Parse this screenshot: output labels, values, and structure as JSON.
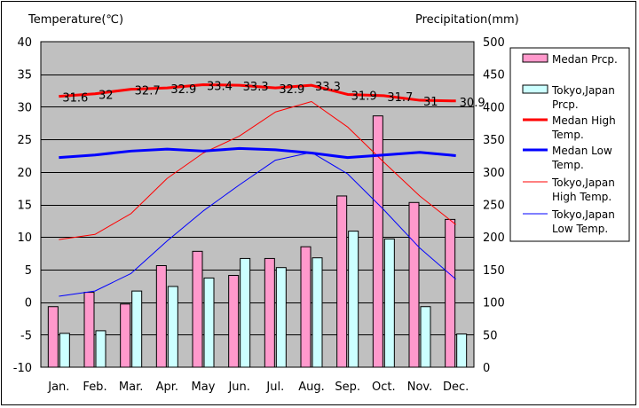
{
  "chart_data": {
    "type": "bar",
    "title": "",
    "y_left_label": "Temperature(℃)",
    "y_right_label": "Precipitation(mm)",
    "y_left_lim": [
      -10,
      40
    ],
    "y_left_ticks": [
      40,
      35,
      30,
      25,
      20,
      15,
      10,
      5,
      0,
      -5,
      -10
    ],
    "y_right_lim": [
      0,
      500
    ],
    "y_right_ticks": [
      500,
      450,
      400,
      350,
      300,
      250,
      200,
      150,
      100,
      50,
      0
    ],
    "categories": [
      "Jan.",
      "Feb.",
      "Mar.",
      "Apr.",
      "May",
      "Jun.",
      "Jul.",
      "Aug.",
      "Sep.",
      "Oct.",
      "Nov.",
      "Dec."
    ],
    "grid": true,
    "legend_position": "right",
    "bar_series": [
      {
        "name": "Medan Prcp.",
        "axis": "right",
        "color": "#ff99cc",
        "values": [
          93,
          115,
          97,
          156,
          178,
          141,
          167,
          185,
          263,
          386,
          253,
          227
        ]
      },
      {
        "name": "Tokyo,Japan Prcp.",
        "axis": "right",
        "color": "#ccffff",
        "values": [
          52,
          56,
          117,
          124,
          137,
          167,
          153,
          168,
          209,
          197,
          93,
          51
        ]
      }
    ],
    "line_series": [
      {
        "name": "Medan High Temp.",
        "axis": "left",
        "color": "#ff0000",
        "width": 3,
        "values": [
          31.6,
          32,
          32.7,
          32.9,
          33.4,
          33.3,
          32.9,
          33.3,
          31.9,
          31.7,
          31,
          30.9
        ]
      },
      {
        "name": "Medan Low Temp.",
        "axis": "left",
        "color": "#0000ff",
        "width": 3,
        "values": [
          22.2,
          22.6,
          23.2,
          23.5,
          23.2,
          23.6,
          23.4,
          22.9,
          22.2,
          22.6,
          23.0,
          22.5
        ]
      },
      {
        "name": "Tokyo,Japan High Temp.",
        "axis": "left",
        "color": "#ff0000",
        "width": 1,
        "values": [
          9.6,
          10.4,
          13.6,
          19.0,
          22.9,
          25.5,
          29.2,
          30.8,
          26.9,
          21.5,
          16.3,
          11.9
        ]
      },
      {
        "name": "Tokyo,Japan Low Temp.",
        "axis": "left",
        "color": "#0000ff",
        "width": 1,
        "values": [
          0.9,
          1.7,
          4.4,
          9.4,
          14.0,
          18.0,
          21.8,
          23.0,
          19.7,
          14.2,
          8.3,
          3.5
        ]
      }
    ],
    "data_labels": [
      "31.6",
      "32",
      "32.7",
      "32.9",
      "33.4",
      "33.3",
      "32.9",
      "33.3",
      "31.9",
      "31.7",
      "31",
      "30.9"
    ],
    "legend_lines": [
      [
        "Medan Prcp."
      ],
      [
        "Tokyo,Japan",
        "Prcp."
      ],
      [
        "Medan High",
        "Temp."
      ],
      [
        "Medan Low",
        "Temp."
      ],
      [
        "Tokyo,Japan",
        "High Temp."
      ],
      [
        "Tokyo,Japan",
        "Low Temp."
      ]
    ]
  }
}
